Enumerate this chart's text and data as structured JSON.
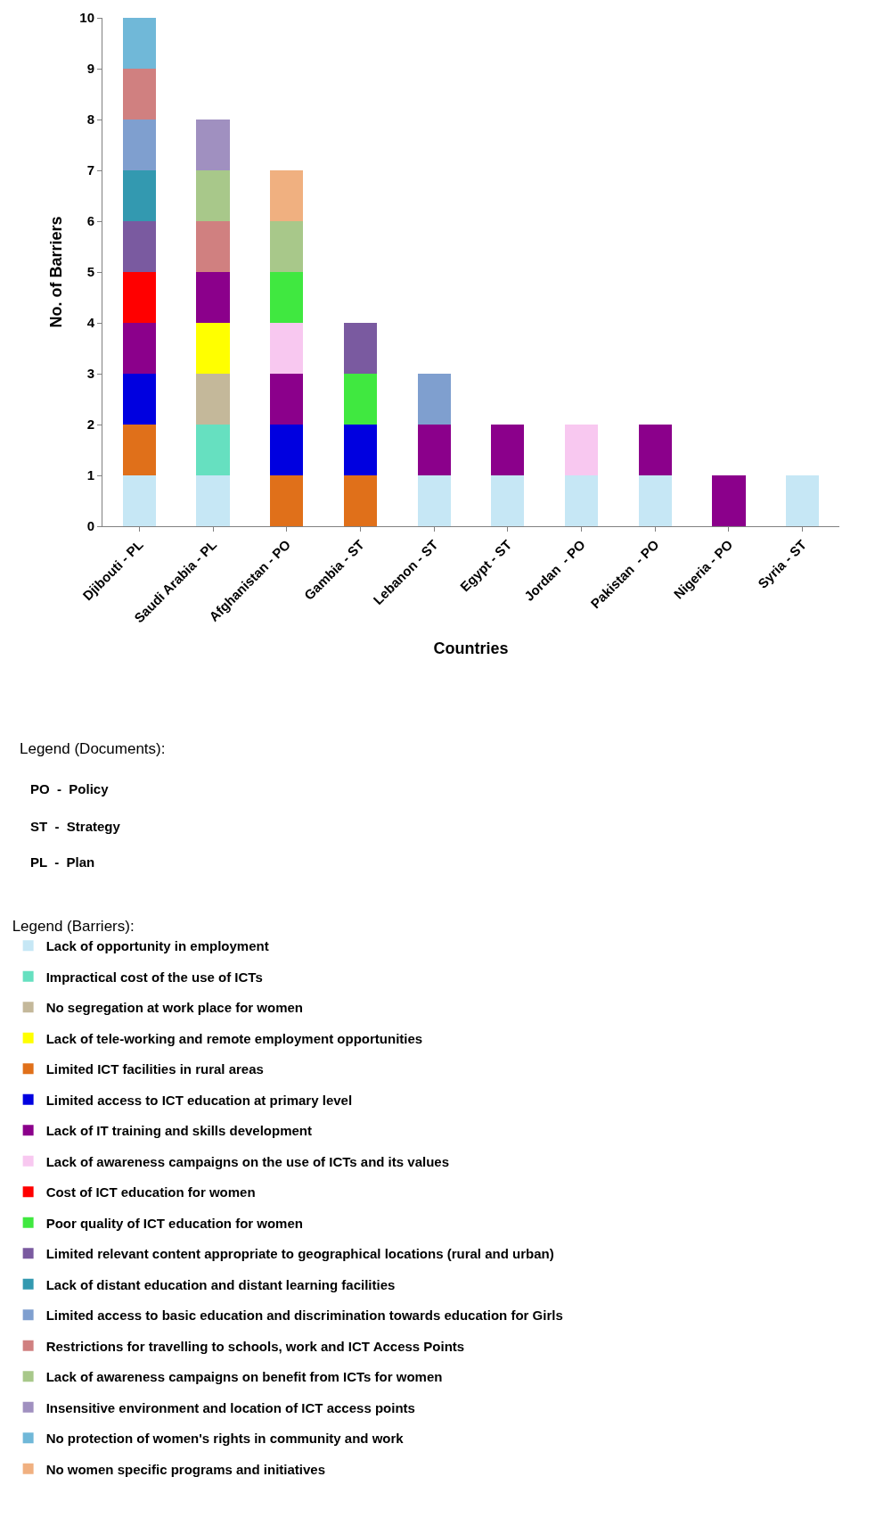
{
  "chart_data": {
    "type": "bar",
    "stacked": true,
    "xlabel": "Countries",
    "ylabel": "No. of Barriers",
    "categories": [
      "Djibouti - PL",
      "Saudi Arabia - PL",
      "Afghanistan - PO",
      "Gambia - ST",
      "Lebanon - ST",
      "Egypt - ST",
      "Jordan  - PO",
      "Pakistan  - PO",
      "Nigeria - PO",
      "Syria - ST"
    ],
    "ylim": [
      0,
      10
    ],
    "yticks": [
      0,
      1,
      2,
      3,
      4,
      5,
      6,
      7,
      8,
      9,
      10
    ],
    "legend": "bottom",
    "legend_title": "Legend (Barriers):",
    "annotations": [
      "Legend (Documents):",
      "PO  -  Policy",
      "ST  -  Strategy",
      "PL  -  Plan"
    ],
    "series": [
      {
        "name": "Lack of opportunity in employment",
        "color": "#c6e7f5",
        "values": [
          1,
          1,
          null,
          null,
          1,
          1,
          1,
          1,
          null,
          1
        ]
      },
      {
        "name": "Impractical cost of the use of ICTs",
        "color": "#66e0c0",
        "values": [
          null,
          1,
          null,
          null,
          null,
          null,
          null,
          null,
          null,
          null
        ]
      },
      {
        "name": "No segregation at work place for women",
        "color": "#c4b89a",
        "values": [
          null,
          1,
          null,
          null,
          null,
          null,
          null,
          null,
          null,
          null
        ]
      },
      {
        "name": "Lack of tele-working and remote employment opportunities",
        "color": "#ffff00",
        "values": [
          null,
          1,
          null,
          null,
          null,
          null,
          null,
          null,
          null,
          null
        ]
      },
      {
        "name": "Limited ICT facilities in rural areas",
        "color": "#e0701a",
        "values": [
          1,
          null,
          1,
          1,
          null,
          null,
          null,
          null,
          null,
          null
        ]
      },
      {
        "name": "Limited access to ICT education at primary level",
        "color": "#0000e0",
        "values": [
          1,
          null,
          1,
          1,
          null,
          null,
          null,
          null,
          null,
          null
        ]
      },
      {
        "name": "Lack of IT training and skills development",
        "color": "#8b008b",
        "values": [
          1,
          1,
          1,
          null,
          1,
          1,
          null,
          1,
          1,
          null
        ]
      },
      {
        "name": "Lack of awareness campaigns on the use of ICTs and its values",
        "color": "#f8c8f0",
        "values": [
          null,
          null,
          1,
          null,
          null,
          null,
          1,
          null,
          null,
          null
        ]
      },
      {
        "name": "Cost of ICT education for women",
        "color": "#ff0000",
        "values": [
          1,
          null,
          null,
          null,
          null,
          null,
          null,
          null,
          null,
          null
        ]
      },
      {
        "name": "Poor quality of ICT education for women",
        "color": "#40e840",
        "values": [
          null,
          null,
          1,
          1,
          null,
          null,
          null,
          null,
          null,
          null
        ]
      },
      {
        "name": "Limited relevant content appropriate to geographical locations (rural and urban)",
        "color": "#7a5aa0",
        "values": [
          1,
          null,
          null,
          1,
          null,
          null,
          null,
          null,
          null,
          null
        ]
      },
      {
        "name": "Lack of distant education and distant learning facilities",
        "color": "#3399b0",
        "values": [
          1,
          null,
          null,
          null,
          null,
          null,
          null,
          null,
          null,
          null
        ]
      },
      {
        "name": "Limited access to basic education and discrimination towards education for Girls",
        "color": "#7f9fcf",
        "values": [
          1,
          null,
          null,
          null,
          1,
          null,
          null,
          null,
          null,
          null
        ]
      },
      {
        "name": "Restrictions for travelling to schools, work and ICT Access Points",
        "color": "#d08080",
        "values": [
          1,
          1,
          null,
          null,
          null,
          null,
          null,
          null,
          null,
          null
        ]
      },
      {
        "name": "Lack of awareness campaigns on benefit from ICTs for women",
        "color": "#a8c88a",
        "values": [
          null,
          1,
          1,
          null,
          null,
          null,
          null,
          null,
          null,
          null
        ]
      },
      {
        "name": "Insensitive environment and location of ICT access points",
        "color": "#a090c0",
        "values": [
          null,
          1,
          null,
          null,
          null,
          null,
          null,
          null,
          null,
          null
        ]
      },
      {
        "name": "No protection of women's rights in community and work",
        "color": "#70b8d8",
        "values": [
          1,
          null,
          null,
          null,
          null,
          null,
          null,
          null,
          null,
          null
        ]
      },
      {
        "name": "No women specific programs and initiatives",
        "color": "#f0b080",
        "values": [
          null,
          null,
          1,
          null,
          null,
          null,
          null,
          null,
          null,
          null
        ]
      }
    ]
  }
}
